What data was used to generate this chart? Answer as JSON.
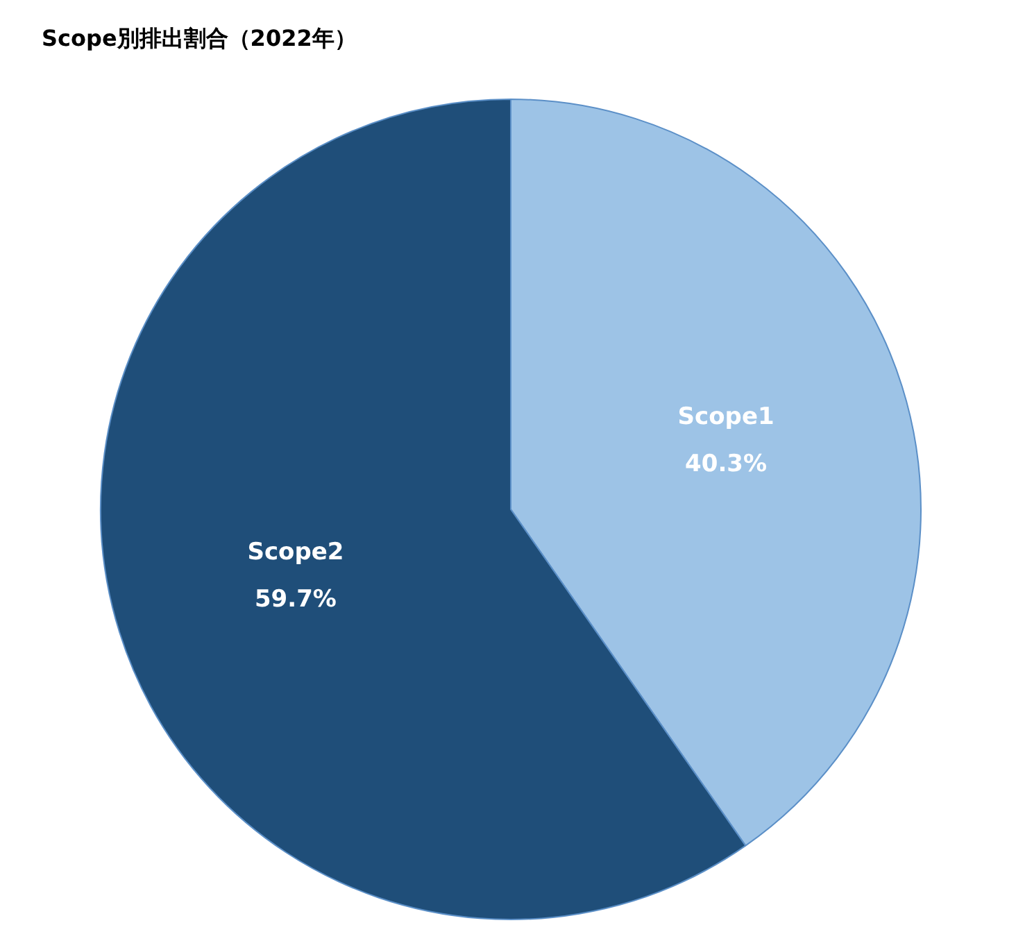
{
  "chart_data": {
    "type": "pie",
    "title": "Scope別排出割合（2022年）",
    "categories": [
      "Scope1",
      "Scope2"
    ],
    "values": [
      40.3,
      59.7
    ],
    "colors": [
      "#9dc3e6",
      "#1f4e79"
    ],
    "value_labels": [
      "40.3%",
      "59.7%"
    ],
    "legend": false
  }
}
